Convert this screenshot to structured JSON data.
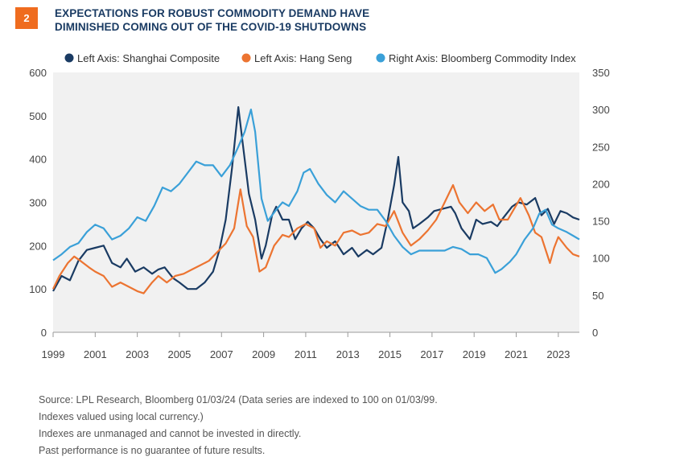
{
  "header": {
    "badge": "2",
    "title_line1": "EXPECTATIONS FOR ROBUST COMMODITY DEMAND HAVE",
    "title_line2": "DIMINISHED COMING OUT OF THE COVID-19 SHUTDOWNS"
  },
  "notes": [
    "Source: LPL Research, Bloomberg 01/03/24  (Data series are indexed to 100 on 01/03/99.",
    "Indexes valued using local currency.)",
    "Indexes are unmanaged and cannot be invested in directly.",
    "Past performance is no guarantee of future results."
  ],
  "colors": {
    "shanghai": "#1a3b63",
    "hangseng": "#ec7431",
    "bloomberg": "#3aa0d8",
    "plot_bg": "#f1f1f1",
    "badge": "#ef6c1f"
  },
  "chart_data": {
    "type": "line",
    "legend_position": "top",
    "grid": false,
    "x_ticks": [
      "1999",
      "2001",
      "2003",
      "2005",
      "2007",
      "2009",
      "2011",
      "2013",
      "2015",
      "2017",
      "2019",
      "2021",
      "2023"
    ],
    "xlim": [
      1999,
      2024
    ],
    "ylim_left": [
      0,
      600
    ],
    "ylim_right": [
      0,
      350
    ],
    "yticks_left": [
      "0",
      "100",
      "200",
      "300",
      "400",
      "500",
      "600"
    ],
    "yticks_right": [
      "0",
      "50",
      "100",
      "150",
      "200",
      "250",
      "300",
      "350"
    ],
    "series": [
      {
        "name": "Left Axis: Shanghai Composite",
        "axis": "left",
        "color": "#1a3b63",
        "points": [
          [
            1999.0,
            95
          ],
          [
            1999.4,
            130
          ],
          [
            1999.8,
            120
          ],
          [
            2000.2,
            165
          ],
          [
            2000.6,
            190
          ],
          [
            2001.0,
            195
          ],
          [
            2001.4,
            200
          ],
          [
            2001.8,
            160
          ],
          [
            2002.2,
            150
          ],
          [
            2002.5,
            170
          ],
          [
            2002.9,
            140
          ],
          [
            2003.3,
            150
          ],
          [
            2003.7,
            135
          ],
          [
            2004.0,
            145
          ],
          [
            2004.3,
            150
          ],
          [
            2004.7,
            125
          ],
          [
            2005.0,
            115
          ],
          [
            2005.4,
            100
          ],
          [
            2005.8,
            100
          ],
          [
            2006.2,
            115
          ],
          [
            2006.6,
            140
          ],
          [
            2006.9,
            190
          ],
          [
            2007.2,
            260
          ],
          [
            2007.5,
            380
          ],
          [
            2007.8,
            520
          ],
          [
            2008.0,
            440
          ],
          [
            2008.3,
            320
          ],
          [
            2008.6,
            260
          ],
          [
            2008.9,
            170
          ],
          [
            2009.1,
            200
          ],
          [
            2009.4,
            270
          ],
          [
            2009.6,
            290
          ],
          [
            2009.9,
            260
          ],
          [
            2010.2,
            260
          ],
          [
            2010.5,
            215
          ],
          [
            2010.8,
            240
          ],
          [
            2011.1,
            255
          ],
          [
            2011.4,
            240
          ],
          [
            2011.7,
            215
          ],
          [
            2012.0,
            195
          ],
          [
            2012.4,
            210
          ],
          [
            2012.8,
            180
          ],
          [
            2013.2,
            195
          ],
          [
            2013.5,
            175
          ],
          [
            2013.9,
            190
          ],
          [
            2014.2,
            180
          ],
          [
            2014.6,
            195
          ],
          [
            2014.9,
            260
          ],
          [
            2015.2,
            340
          ],
          [
            2015.4,
            405
          ],
          [
            2015.6,
            300
          ],
          [
            2015.9,
            280
          ],
          [
            2016.1,
            240
          ],
          [
            2016.4,
            250
          ],
          [
            2016.8,
            265
          ],
          [
            2017.1,
            280
          ],
          [
            2017.5,
            285
          ],
          [
            2017.9,
            290
          ],
          [
            2018.1,
            275
          ],
          [
            2018.4,
            240
          ],
          [
            2018.8,
            215
          ],
          [
            2019.1,
            260
          ],
          [
            2019.4,
            250
          ],
          [
            2019.8,
            255
          ],
          [
            2020.1,
            245
          ],
          [
            2020.4,
            265
          ],
          [
            2020.8,
            290
          ],
          [
            2021.1,
            300
          ],
          [
            2021.5,
            295
          ],
          [
            2021.9,
            310
          ],
          [
            2022.2,
            270
          ],
          [
            2022.5,
            285
          ],
          [
            2022.8,
            250
          ],
          [
            2023.1,
            280
          ],
          [
            2023.4,
            275
          ],
          [
            2023.7,
            265
          ],
          [
            2024.0,
            260
          ]
        ]
      },
      {
        "name": "Left Axis: Hang Seng",
        "axis": "left",
        "color": "#ec7431",
        "points": [
          [
            1999.0,
            100
          ],
          [
            1999.3,
            130
          ],
          [
            1999.7,
            160
          ],
          [
            2000.0,
            175
          ],
          [
            2000.3,
            165
          ],
          [
            2000.7,
            150
          ],
          [
            2001.0,
            140
          ],
          [
            2001.4,
            130
          ],
          [
            2001.8,
            105
          ],
          [
            2002.2,
            115
          ],
          [
            2002.6,
            105
          ],
          [
            2003.0,
            95
          ],
          [
            2003.3,
            90
          ],
          [
            2003.7,
            115
          ],
          [
            2004.0,
            130
          ],
          [
            2004.4,
            115
          ],
          [
            2004.8,
            130
          ],
          [
            2005.2,
            135
          ],
          [
            2005.6,
            145
          ],
          [
            2006.0,
            155
          ],
          [
            2006.4,
            165
          ],
          [
            2006.8,
            185
          ],
          [
            2007.2,
            205
          ],
          [
            2007.6,
            240
          ],
          [
            2007.9,
            330
          ],
          [
            2008.2,
            245
          ],
          [
            2008.5,
            220
          ],
          [
            2008.8,
            140
          ],
          [
            2009.1,
            150
          ],
          [
            2009.5,
            200
          ],
          [
            2009.9,
            225
          ],
          [
            2010.2,
            220
          ],
          [
            2010.6,
            240
          ],
          [
            2011.0,
            250
          ],
          [
            2011.4,
            240
          ],
          [
            2011.7,
            195
          ],
          [
            2012.0,
            210
          ],
          [
            2012.4,
            200
          ],
          [
            2012.8,
            230
          ],
          [
            2013.2,
            235
          ],
          [
            2013.6,
            225
          ],
          [
            2014.0,
            230
          ],
          [
            2014.4,
            250
          ],
          [
            2014.8,
            245
          ],
          [
            2015.2,
            280
          ],
          [
            2015.6,
            230
          ],
          [
            2016.0,
            200
          ],
          [
            2016.4,
            215
          ],
          [
            2016.8,
            235
          ],
          [
            2017.2,
            260
          ],
          [
            2017.6,
            300
          ],
          [
            2018.0,
            340
          ],
          [
            2018.3,
            300
          ],
          [
            2018.7,
            275
          ],
          [
            2019.1,
            300
          ],
          [
            2019.5,
            280
          ],
          [
            2019.9,
            295
          ],
          [
            2020.2,
            260
          ],
          [
            2020.6,
            260
          ],
          [
            2020.9,
            285
          ],
          [
            2021.2,
            310
          ],
          [
            2021.6,
            270
          ],
          [
            2021.9,
            230
          ],
          [
            2022.2,
            220
          ],
          [
            2022.6,
            160
          ],
          [
            2022.8,
            195
          ],
          [
            2023.0,
            220
          ],
          [
            2023.4,
            195
          ],
          [
            2023.7,
            180
          ],
          [
            2024.0,
            175
          ]
        ]
      },
      {
        "name": "Right Axis: Bloomberg Commodity Index",
        "axis": "right",
        "color": "#3aa0d8",
        "points": [
          [
            1999.0,
            97
          ],
          [
            1999.4,
            105
          ],
          [
            1999.8,
            115
          ],
          [
            2000.2,
            120
          ],
          [
            2000.6,
            135
          ],
          [
            2001.0,
            145
          ],
          [
            2001.4,
            140
          ],
          [
            2001.8,
            125
          ],
          [
            2002.2,
            130
          ],
          [
            2002.6,
            140
          ],
          [
            2003.0,
            155
          ],
          [
            2003.4,
            150
          ],
          [
            2003.8,
            170
          ],
          [
            2004.2,
            195
          ],
          [
            2004.6,
            190
          ],
          [
            2005.0,
            200
          ],
          [
            2005.4,
            215
          ],
          [
            2005.8,
            230
          ],
          [
            2006.2,
            225
          ],
          [
            2006.6,
            225
          ],
          [
            2007.0,
            210
          ],
          [
            2007.4,
            225
          ],
          [
            2007.8,
            250
          ],
          [
            2008.1,
            270
          ],
          [
            2008.4,
            300
          ],
          [
            2008.6,
            270
          ],
          [
            2008.9,
            180
          ],
          [
            2009.2,
            150
          ],
          [
            2009.6,
            165
          ],
          [
            2009.9,
            175
          ],
          [
            2010.2,
            170
          ],
          [
            2010.6,
            190
          ],
          [
            2010.9,
            215
          ],
          [
            2011.2,
            220
          ],
          [
            2011.6,
            200
          ],
          [
            2012.0,
            185
          ],
          [
            2012.4,
            175
          ],
          [
            2012.8,
            190
          ],
          [
            2013.2,
            180
          ],
          [
            2013.6,
            170
          ],
          [
            2014.0,
            165
          ],
          [
            2014.4,
            165
          ],
          [
            2014.8,
            150
          ],
          [
            2015.2,
            130
          ],
          [
            2015.6,
            115
          ],
          [
            2016.0,
            105
          ],
          [
            2016.4,
            110
          ],
          [
            2016.8,
            110
          ],
          [
            2017.2,
            110
          ],
          [
            2017.6,
            110
          ],
          [
            2018.0,
            115
          ],
          [
            2018.4,
            112
          ],
          [
            2018.8,
            105
          ],
          [
            2019.2,
            105
          ],
          [
            2019.6,
            100
          ],
          [
            2020.0,
            80
          ],
          [
            2020.3,
            85
          ],
          [
            2020.7,
            95
          ],
          [
            2021.0,
            105
          ],
          [
            2021.4,
            125
          ],
          [
            2021.8,
            140
          ],
          [
            2022.1,
            160
          ],
          [
            2022.4,
            165
          ],
          [
            2022.7,
            145
          ],
          [
            2023.0,
            140
          ],
          [
            2023.4,
            135
          ],
          [
            2023.7,
            130
          ],
          [
            2024.0,
            125
          ]
        ]
      }
    ]
  }
}
